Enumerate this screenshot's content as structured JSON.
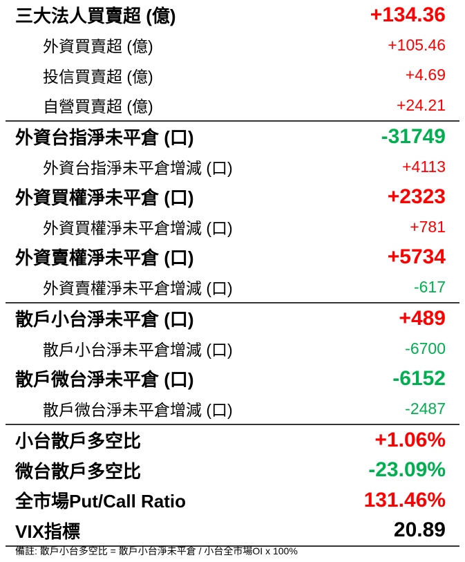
{
  "colors": {
    "positive": "#ff0000",
    "negative": "#00b050",
    "neutral": "#000000"
  },
  "groups": [
    [
      {
        "type": "main",
        "label": "三大法人買賣超 (億)",
        "value": "+134.36",
        "color": "red"
      },
      {
        "type": "sub",
        "label": "外資買賣超 (億)",
        "value": "+105.46",
        "color": "red"
      },
      {
        "type": "sub",
        "label": "投信買賣超 (億)",
        "value": "+4.69",
        "color": "red"
      },
      {
        "type": "sub",
        "label": "自營買賣超 (億)",
        "value": "+24.21",
        "color": "red"
      }
    ],
    [
      {
        "type": "main",
        "label": "外資台指淨未平倉 (口)",
        "value": "-31749",
        "color": "green"
      },
      {
        "type": "sub",
        "label": "外資台指淨未平倉增減 (口)",
        "value": "+4113",
        "color": "red"
      },
      {
        "type": "main",
        "label": "外資買權淨未平倉 (口)",
        "value": "+2323",
        "color": "red"
      },
      {
        "type": "sub",
        "label": "外資買權淨未平倉增減 (口)",
        "value": "+781",
        "color": "red"
      },
      {
        "type": "main",
        "label": "外資賣權淨未平倉 (口)",
        "value": "+5734",
        "color": "red"
      },
      {
        "type": "sub",
        "label": "外資賣權淨未平倉增減 (口)",
        "value": "-617",
        "color": "green"
      }
    ],
    [
      {
        "type": "main",
        "label": "散戶小台淨未平倉 (口)",
        "value": "+489",
        "color": "red"
      },
      {
        "type": "sub",
        "label": "散戶小台淨未平倉增減 (口)",
        "value": "-6700",
        "color": "green"
      },
      {
        "type": "main",
        "label": "散戶微台淨未平倉 (口)",
        "value": "-6152",
        "color": "green"
      },
      {
        "type": "sub",
        "label": "散戶微台淨未平倉增減 (口)",
        "value": "-2487",
        "color": "green"
      }
    ],
    [
      {
        "type": "main",
        "label": "小台散戶多空比",
        "value": "+1.06%",
        "color": "red"
      },
      {
        "type": "main",
        "label": "微台散戶多空比",
        "value": "-23.09%",
        "color": "green"
      },
      {
        "type": "main",
        "label": "全市場Put/Call Ratio",
        "value": "131.46%",
        "color": "red"
      },
      {
        "type": "main",
        "label": "VIX指標",
        "value": "20.89",
        "color": "black"
      }
    ]
  ],
  "note": "備註:  散戶小台多空比 = 散戶小台淨未平倉 / 小台全市場OI x 100%"
}
